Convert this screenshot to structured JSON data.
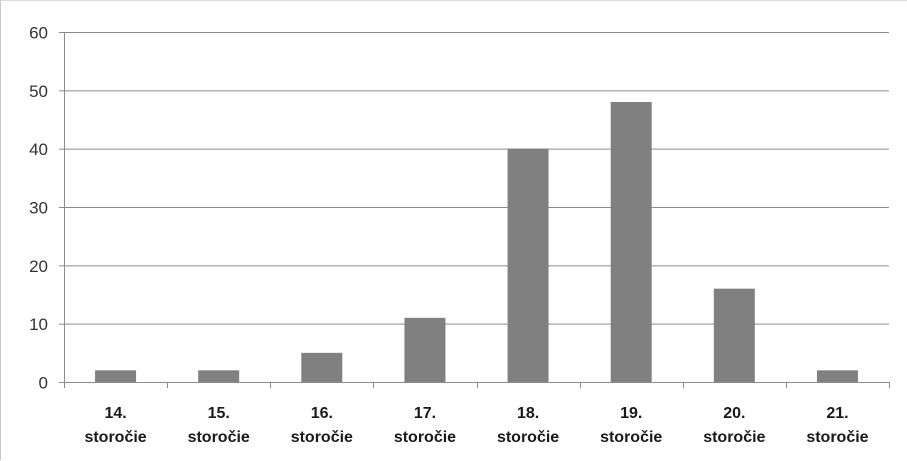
{
  "chart_data": {
    "type": "bar",
    "categories": [
      [
        "14.",
        "storočie"
      ],
      [
        "15.",
        "storočie"
      ],
      [
        "16.",
        "storočie"
      ],
      [
        "17.",
        "storočie"
      ],
      [
        "18.",
        "storočie"
      ],
      [
        "19.",
        "storočie"
      ],
      [
        "20.",
        "storočie"
      ],
      [
        "21.",
        "storočie"
      ]
    ],
    "values": [
      2,
      2,
      5,
      11,
      40,
      48,
      16,
      2
    ],
    "ylim": [
      0,
      60
    ],
    "yticks": [
      0,
      10,
      20,
      30,
      40,
      50,
      60
    ],
    "grid": true,
    "bar_color": "#808080",
    "grid_color": "#8c8c8c",
    "title": "",
    "xlabel": "",
    "ylabel": ""
  }
}
